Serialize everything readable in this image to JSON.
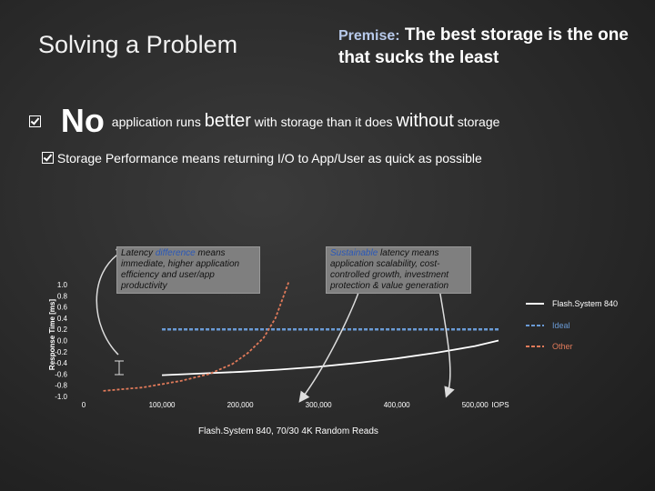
{
  "slide": {
    "title": "Solving a Problem",
    "premise_label": "Premise:",
    "premise_text": "The best storage is the one that sucks the least",
    "bullet1": {
      "no": "No",
      "part1": "application runs",
      "better": "better",
      "part2": "with storage than it does",
      "without": "without",
      "part3": "storage"
    },
    "bullet2": {
      "part1": "Storage",
      "performance": "Performance",
      "part2": "means returning I/O to App/User as quick as possible"
    },
    "callout1": {
      "line1a": "Latency",
      "line1b": "difference",
      "line1c": "means immediate, higher application efficiency and user/app productivity"
    },
    "callout2": {
      "line1a": "Sustainable",
      "line1b": "latency means application scalability, cost-controlled growth, investment protection & value generation"
    },
    "x_caption": "Flash.System 840, 70/30 4K Random Reads"
  },
  "chart_data": {
    "type": "line",
    "title": "",
    "xlabel": "IOPS",
    "ylabel": "Response Time [ms]",
    "xlim": [
      0,
      530000
    ],
    "ylim": [
      -1.0,
      1.0
    ],
    "x_ticks": [
      0,
      100000,
      200000,
      300000,
      400000,
      500000
    ],
    "x_tick_labels": [
      "0",
      "100,000",
      "200,000",
      "300,000",
      "400,000",
      "500,000"
    ],
    "y_ticks": [
      -1.0,
      -0.8,
      -0.6,
      -0.4,
      -0.2,
      0.0,
      0.2,
      0.4,
      0.6,
      0.8,
      1.0
    ],
    "y_tick_labels": [
      "-1.0",
      "-0.8",
      "-0.6",
      "-0.4",
      "-0.2",
      "0.0",
      "0.2",
      "0.4",
      "0.6",
      "0.8",
      "1.0"
    ],
    "legend_position": "right",
    "series": [
      {
        "name": "Flash.System 840",
        "color": "#ffffff",
        "style": "solid",
        "x": [
          100000,
          150000,
          200000,
          250000,
          300000,
          350000,
          400000,
          450000,
          500000,
          530000
        ],
        "y": [
          -0.62,
          -0.59,
          -0.56,
          -0.52,
          -0.47,
          -0.4,
          -0.32,
          -0.22,
          -0.1,
          0.0
        ]
      },
      {
        "name": "Ideal",
        "color": "#6a9bd6",
        "style": "dashed",
        "x": [
          100000,
          530000
        ],
        "y": [
          0.2,
          0.2
        ]
      },
      {
        "name": "Other",
        "color": "#e07a5a",
        "style": "dashed",
        "x": [
          25000,
          75000,
          125000,
          160000,
          190000,
          210000,
          230000,
          245000,
          255000,
          262000
        ],
        "y": [
          -0.9,
          -0.84,
          -0.72,
          -0.6,
          -0.42,
          -0.22,
          0.05,
          0.4,
          0.78,
          1.05
        ]
      }
    ]
  }
}
